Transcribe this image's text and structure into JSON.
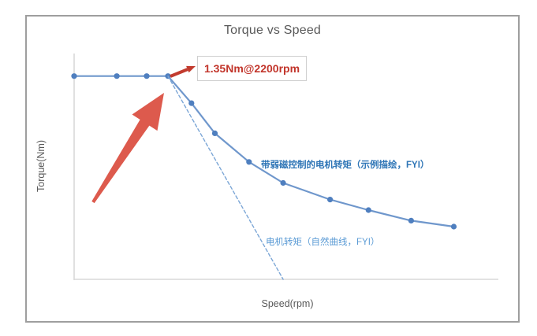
{
  "chart_data": {
    "type": "line",
    "title": "Torque vs Speed",
    "xlabel": "Speed(rpm)",
    "ylabel": "Torque(Nm)",
    "xlim": [
      0,
      10000
    ],
    "ylim": [
      0,
      1.5
    ],
    "grid": false,
    "tick_labels": "none shown on either axis",
    "legend_position": "inline text labels next to each curve",
    "series": [
      {
        "name": "带弱磁控制的电机转矩（示例描绘，FYI）",
        "style": "solid",
        "markers": true,
        "color": "#6f97cc",
        "marker_color": "#4f7fbf",
        "label_color": "#2e75b6",
        "points": [
          [
            0,
            1.35
          ],
          [
            1000,
            1.35
          ],
          [
            1700,
            1.35
          ],
          [
            2200,
            1.35
          ],
          [
            2750,
            1.17
          ],
          [
            3300,
            0.97
          ],
          [
            4100,
            0.78
          ],
          [
            4900,
            0.64
          ],
          [
            6000,
            0.53
          ],
          [
            6900,
            0.46
          ],
          [
            7900,
            0.39
          ],
          [
            8900,
            0.35
          ]
        ]
      },
      {
        "name": "电机转矩（自然曲线，FYI）",
        "style": "dashed",
        "markers": false,
        "color": "#7ba6d6",
        "label_color": "#5b9bd5",
        "points": [
          [
            2200,
            1.35
          ],
          [
            4900,
            0
          ]
        ]
      }
    ],
    "annotations": [
      {
        "text": "1.35Nm@2200rpm",
        "x": 2200,
        "y": 1.35,
        "color": "#c2352b"
      }
    ]
  },
  "colors": {
    "curve_blue": "#6f97cc",
    "marker_blue": "#4f7fbf",
    "dashed_blue": "#7ba6d6",
    "series1_label_blue": "#2e75b6",
    "series2_label_blue": "#5b9bd5",
    "annotation_red": "#c2352b",
    "big_arrow_red": "#dd5a4d",
    "callout_arrow_red": "#c23b2e",
    "axis_gray": "#d9d9d9",
    "text_gray": "#595959",
    "frame_gray": "#9e9e9e"
  }
}
